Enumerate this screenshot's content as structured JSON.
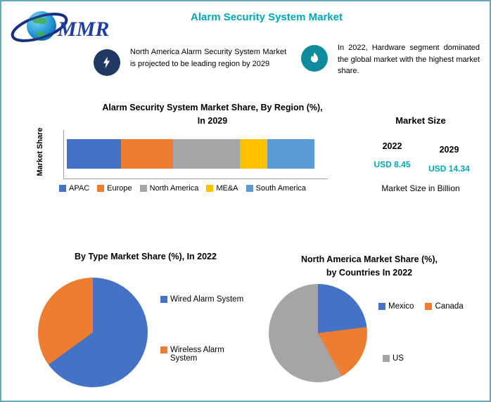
{
  "page": {
    "title": "Alarm Security System Market"
  },
  "logo": {
    "text": "MMR"
  },
  "theme": {
    "accent": "#00a7b5",
    "navy": "#203864",
    "teal": "#0e8c9d",
    "border": "#63a9b5",
    "axis": "#9aa0a6"
  },
  "callouts": [
    {
      "icon": "lightning-icon",
      "text": "North America Alarm Security System Market is projected to be leading region by 2029"
    },
    {
      "icon": "flame-icon",
      "text": "In 2022, Hardware segment dominated the global market with the highest market share."
    }
  ],
  "market_size": {
    "heading": "Market Size",
    "years": [
      "2022",
      "2029"
    ],
    "values": [
      "USD 8.45",
      "USD 14.34"
    ],
    "note": "Market Size in Billion",
    "value_color": "#00a7b5"
  },
  "chart_data": [
    {
      "type": "bar",
      "subtype": "stacked-horizontal",
      "title": "Alarm Security System Market Share, By Region (%), In 2029",
      "title_lines": [
        "Alarm Security System Market Share, By Region (%),",
        "In 2029"
      ],
      "xlabel": "",
      "ylabel": "Market Share",
      "categories": [
        "APAC",
        "Europe",
        "North America",
        "ME&A",
        "South America"
      ],
      "values": [
        22,
        21,
        27,
        11,
        19
      ],
      "colors": [
        "#4472C4",
        "#ED7D31",
        "#A5A5A5",
        "#FFC000",
        "#5B9BD5"
      ],
      "legend_position": "bottom",
      "grid": false
    },
    {
      "type": "pie",
      "title": "By Type Market Share (%), In 2022",
      "categories": [
        "Wired Alarm System",
        "Wireless Alarm System"
      ],
      "values": [
        65,
        35
      ],
      "colors": [
        "#4472C4",
        "#ED7D31"
      ],
      "legend_position": "right"
    },
    {
      "type": "pie",
      "title": "North America Market Share (%), by Countries In 2022",
      "title_lines": [
        "North America Market Share (%),",
        "by Countries In 2022"
      ],
      "categories": [
        "Mexico",
        "Canada",
        "US"
      ],
      "values": [
        23,
        19,
        58
      ],
      "colors": [
        "#4472C4",
        "#ED7D31",
        "#A5A5A5"
      ],
      "legend_position": "right"
    }
  ]
}
